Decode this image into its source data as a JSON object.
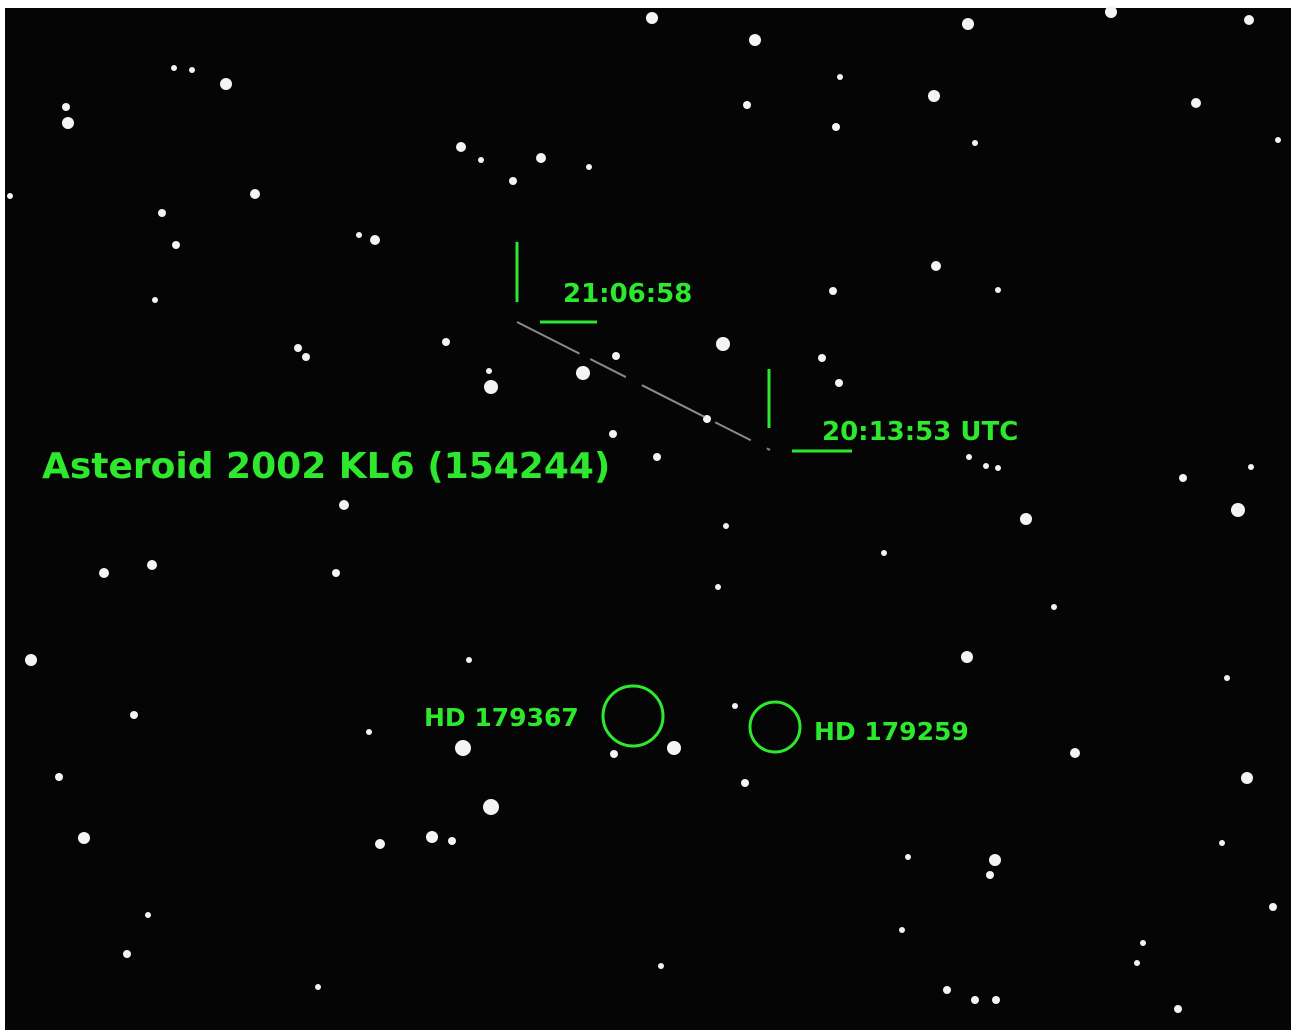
{
  "annotations": {
    "title": "Asteroid 2002 KL6 (154244)",
    "time_start": "21:06:58",
    "time_end": "20:13:53 UTC",
    "star_left": "HD 179367",
    "star_right": "HD 179259"
  }
}
